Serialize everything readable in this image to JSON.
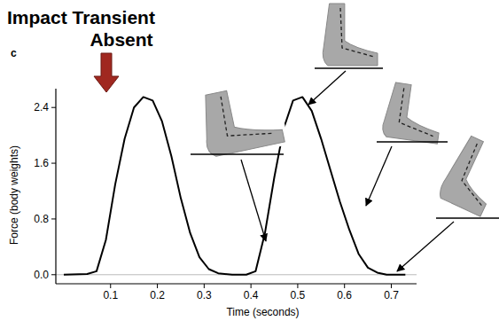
{
  "chart_data": {
    "type": "line",
    "panel_label": "c",
    "annotations": [
      "Impact Transient",
      "Absent"
    ],
    "x_label": "Time (seconds)",
    "y_label": "Force (body weights)",
    "color": "#000000",
    "grid": false,
    "x": [
      0,
      0.05,
      0.07,
      0.09,
      0.11,
      0.13,
      0.15,
      0.17,
      0.19,
      0.21,
      0.23,
      0.25,
      0.27,
      0.29,
      0.31,
      0.33,
      0.36,
      0.39,
      0.41,
      0.43,
      0.45,
      0.47,
      0.49,
      0.51,
      0.53,
      0.55,
      0.57,
      0.59,
      0.61,
      0.63,
      0.65,
      0.67,
      0.69,
      0.73
    ],
    "values": [
      0,
      0.01,
      0.05,
      0.5,
      1.3,
      1.95,
      2.4,
      2.55,
      2.5,
      2.2,
      1.7,
      1.1,
      0.6,
      0.25,
      0.08,
      0.02,
      0,
      0,
      0.05,
      0.6,
      1.4,
      2.1,
      2.5,
      2.55,
      2.35,
      1.95,
      1.5,
      1.05,
      0.65,
      0.3,
      0.1,
      0.03,
      0,
      0
    ],
    "xlim": [
      -0.017,
      0.754
    ],
    "ylim": [
      -0.13,
      2.67
    ],
    "xticks": [
      0.1,
      0.2,
      0.3,
      0.4,
      0.5,
      0.6,
      0.7
    ],
    "yticks": [
      {
        "value": 0,
        "label": "0.0"
      },
      0.8,
      1.6,
      2.4
    ]
  }
}
